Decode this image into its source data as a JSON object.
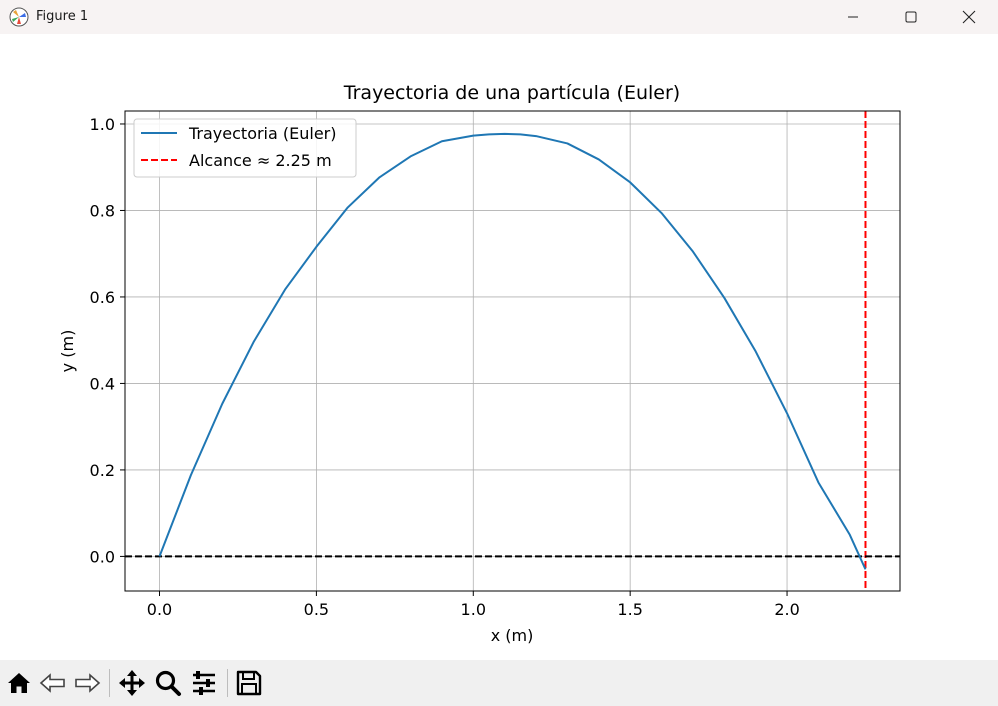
{
  "window": {
    "title": "Figure 1",
    "controls": [
      "minimize",
      "maximize",
      "close"
    ]
  },
  "toolbar": {
    "buttons": [
      "home-icon",
      "back-icon",
      "forward-icon",
      "pan-icon",
      "zoom-icon",
      "configure-subplots-icon",
      "save-icon"
    ]
  },
  "chart_data": {
    "type": "line",
    "title": "Trayectoria de una partícula (Euler)",
    "xlabel": "x (m)",
    "ylabel": "y (m)",
    "xlim": [
      -0.11,
      2.36
    ],
    "ylim": [
      -0.08,
      1.03
    ],
    "xticks": [
      0.0,
      0.5,
      1.0,
      1.5,
      2.0
    ],
    "xtick_labels": [
      "0.0",
      "0.5",
      "1.0",
      "1.5",
      "2.0"
    ],
    "yticks": [
      0.0,
      0.2,
      0.4,
      0.6,
      0.8,
      1.0
    ],
    "ytick_labels": [
      "0.0",
      "0.2",
      "0.4",
      "0.6",
      "0.8",
      "1.0"
    ],
    "grid": true,
    "legend_position": "top-left",
    "series": [
      {
        "name": "Trayectoria (Euler)",
        "color": "#1f77b4",
        "style": "solid",
        "x": [
          0.0,
          0.1,
          0.2,
          0.3,
          0.4,
          0.5,
          0.6,
          0.7,
          0.8,
          0.9,
          1.0,
          1.05,
          1.1,
          1.15,
          1.2,
          1.3,
          1.4,
          1.5,
          1.6,
          1.7,
          1.8,
          1.9,
          2.0,
          2.1,
          2.2,
          2.25
        ],
        "y": [
          0.0,
          0.188,
          0.353,
          0.496,
          0.617,
          0.716,
          0.807,
          0.876,
          0.925,
          0.96,
          0.973,
          0.976,
          0.977,
          0.976,
          0.972,
          0.955,
          0.918,
          0.865,
          0.794,
          0.705,
          0.598,
          0.474,
          0.331,
          0.171,
          0.05,
          -0.03
        ]
      }
    ],
    "reference_lines": [
      {
        "orientation": "vertical",
        "value": 2.25,
        "name": "Alcance ≈ 2.25 m",
        "color": "#ff0000",
        "style": "dashed"
      },
      {
        "orientation": "horizontal",
        "value": 0.0,
        "color": "#000000",
        "style": "dashed"
      }
    ],
    "legend": [
      {
        "label": "Trayectoria (Euler)",
        "color": "#1f77b4",
        "style": "solid"
      },
      {
        "label": "Alcance ≈ 2.25 m",
        "color": "#ff0000",
        "style": "dashed"
      }
    ]
  }
}
